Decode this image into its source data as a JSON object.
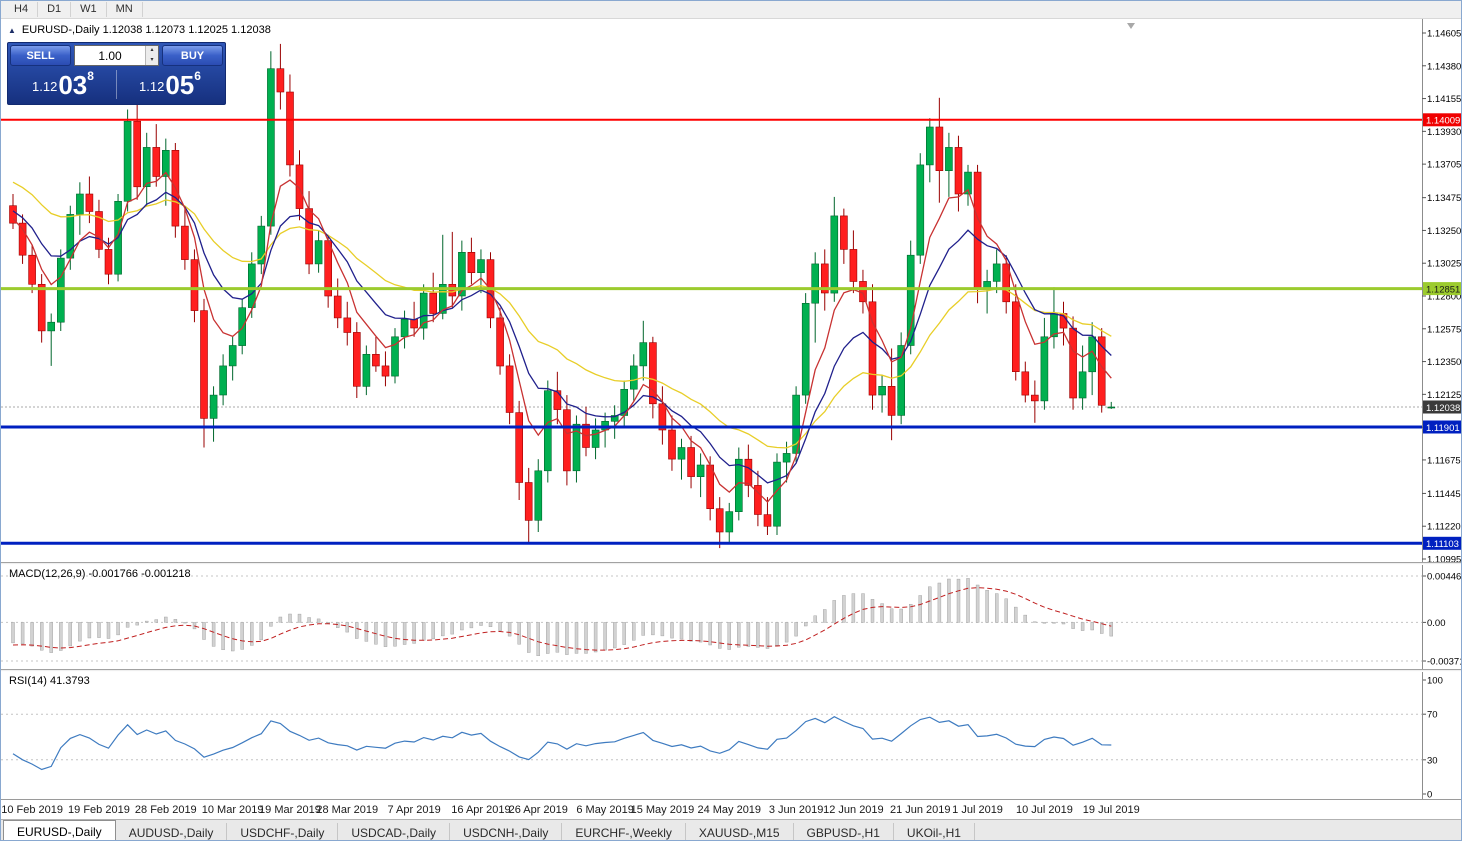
{
  "toolbar": {
    "timeframes": [
      "H4",
      "D1",
      "W1",
      "MN"
    ]
  },
  "icons": {
    "collapse": "▲",
    "spin_up": "▴",
    "spin_down": "▾"
  },
  "chart": {
    "title_line": "EURUSD-,Daily  1.12038 1.12073 1.12025 1.12038",
    "trade_panel": {
      "sell_label": "SELL",
      "buy_label": "BUY",
      "volume": "1.00",
      "sell_price": {
        "prefix": "1.12",
        "big": "03",
        "sup": "8"
      },
      "buy_price": {
        "prefix": "1.12",
        "big": "05",
        "sup": "6"
      }
    }
  },
  "macd": {
    "label": "MACD(12,26,9) -0.001766 -0.001218",
    "fast": 12,
    "slow": 26,
    "signal": 9,
    "bar_color": "#d2d2d2",
    "bar_edge": "#9a9a9a",
    "signal_color": "#C02020",
    "ticks": [
      {
        "v": 0.004465,
        "label": "0.004465"
      },
      {
        "v": 0,
        "label": "0.00"
      },
      {
        "v": -0.003715,
        "label": "-0.003715"
      }
    ]
  },
  "rsi": {
    "label": "RSI(14) 41.3793",
    "period": 14,
    "color": "#3E7BC0",
    "ticks": [
      {
        "v": 100,
        "label": "100"
      },
      {
        "v": 70,
        "label": "70",
        "dashed": true
      },
      {
        "v": 30,
        "label": "30",
        "dashed": true
      },
      {
        "v": 0,
        "label": "0"
      }
    ]
  },
  "tabbar": {
    "tabs": [
      {
        "label": "EURUSD-,Daily",
        "active": true
      },
      {
        "label": "AUDUSD-,Daily",
        "active": false
      },
      {
        "label": "USDCHF-,Daily",
        "active": false
      },
      {
        "label": "USDCAD-,Daily",
        "active": false
      },
      {
        "label": "USDCNH-,Daily",
        "active": false
      },
      {
        "label": "EURCHF-,Weekly",
        "active": false
      },
      {
        "label": "XAUUSD-,M15",
        "active": false
      },
      {
        "label": "GBPUSD-,H1",
        "active": false
      },
      {
        "label": "UKOil-,H1",
        "active": false
      }
    ]
  },
  "chart_data": {
    "type": "candlestick",
    "symbol": "EURUSD-",
    "timeframe": "Daily",
    "ohlc_display": {
      "open": "1.12038",
      "high": "1.12073",
      "low": "1.12025",
      "close": "1.12038"
    },
    "price_ticks": [
      1.14605,
      1.1438,
      1.14155,
      1.1393,
      1.13705,
      1.13475,
      1.1325,
      1.13025,
      1.128,
      1.12575,
      1.1235,
      1.12125,
      1.119,
      1.11675,
      1.11445,
      1.1122,
      1.10995
    ],
    "current_price": {
      "value": 1.12038,
      "label": "1.12038",
      "bg": "#3a3a3a",
      "fg": "#ffffff"
    },
    "hlines": [
      {
        "value": 1.14009,
        "color": "#FF0000",
        "width": 2,
        "label": "1.14009",
        "label_bg": "#F00000",
        "label_fg": "#ffffff"
      },
      {
        "value": 1.12851,
        "color": "#9CCB2E",
        "width": 3,
        "label": "1.12851",
        "label_bg": "#9CCB2E",
        "label_fg": "#1a1a1a"
      },
      {
        "value": 1.11901,
        "color": "#0020C0",
        "width": 3,
        "label": "1.11901",
        "label_bg": "#0020C0",
        "label_fg": "#ffffff"
      },
      {
        "value": 1.11103,
        "color": "#0020C0",
        "width": 3,
        "label": "1.11103",
        "label_bg": "#0020C0",
        "label_fg": "#ffffff"
      }
    ],
    "moving_averages": [
      {
        "period": 26,
        "color": "#E8CE28"
      },
      {
        "period": 12,
        "color": "#20208C"
      },
      {
        "period": 6,
        "color": "#C83232"
      }
    ],
    "ma_warmup": [
      1.1442,
      1.1448,
      1.1436,
      1.1428,
      1.1415,
      1.1422,
      1.141,
      1.1398,
      1.1405,
      1.1392,
      1.138,
      1.1388,
      1.1375,
      1.1362,
      1.137,
      1.1358,
      1.1345,
      1.1352,
      1.134,
      1.1348,
      1.1356,
      1.1344,
      1.1332,
      1.1338,
      1.1326,
      1.1332,
      1.132,
      1.1326,
      1.1334,
      1.1342
    ],
    "colors": {
      "up": "#00B050",
      "up_edge": "#00662c",
      "down": "#FF1F1F",
      "down_edge": "#990000"
    },
    "x_labels": [
      {
        "text": "10 Feb 2019",
        "i": 2
      },
      {
        "text": "19 Feb 2019",
        "i": 9
      },
      {
        "text": "28 Feb 2019",
        "i": 16
      },
      {
        "text": "10 Mar 2019",
        "i": 23
      },
      {
        "text": "19 Mar 2019",
        "i": 29
      },
      {
        "text": "28 Mar 2019",
        "i": 35
      },
      {
        "text": "7 Apr 2019",
        "i": 42
      },
      {
        "text": "16 Apr 2019",
        "i": 49
      },
      {
        "text": "26 Apr 2019",
        "i": 55
      },
      {
        "text": "6 May 2019",
        "i": 62
      },
      {
        "text": "15 May 2019",
        "i": 68
      },
      {
        "text": "24 May 2019",
        "i": 75
      },
      {
        "text": "3 Jun 2019",
        "i": 82
      },
      {
        "text": "12 Jun 2019",
        "i": 88
      },
      {
        "text": "21 Jun 2019",
        "i": 95
      },
      {
        "text": "1 Jul 2019",
        "i": 101
      },
      {
        "text": "10 Jul 2019",
        "i": 108
      },
      {
        "text": "19 Jul 2019",
        "i": 115
      }
    ],
    "candles": [
      [
        1.1342,
        1.135,
        1.1326,
        1.133
      ],
      [
        1.133,
        1.1336,
        1.1302,
        1.1308
      ],
      [
        1.1308,
        1.1315,
        1.1282,
        1.1288
      ],
      [
        1.1288,
        1.1295,
        1.1248,
        1.1256
      ],
      [
        1.1256,
        1.1268,
        1.1232,
        1.1262
      ],
      [
        1.1262,
        1.1312,
        1.1256,
        1.1306
      ],
      [
        1.1306,
        1.1342,
        1.1298,
        1.1336
      ],
      [
        1.1336,
        1.1358,
        1.1322,
        1.135
      ],
      [
        1.135,
        1.1362,
        1.133,
        1.1338
      ],
      [
        1.1338,
        1.1346,
        1.1306,
        1.1312
      ],
      [
        1.1312,
        1.132,
        1.1288,
        1.1295
      ],
      [
        1.1295,
        1.135,
        1.129,
        1.1345
      ],
      [
        1.1345,
        1.1408,
        1.1338,
        1.14
      ],
      [
        1.14,
        1.1415,
        1.1346,
        1.1355
      ],
      [
        1.1355,
        1.1392,
        1.1342,
        1.1382
      ],
      [
        1.1382,
        1.1398,
        1.1355,
        1.1362
      ],
      [
        1.1362,
        1.1388,
        1.1342,
        1.138
      ],
      [
        1.138,
        1.1385,
        1.132,
        1.1328
      ],
      [
        1.1328,
        1.134,
        1.1298,
        1.1305
      ],
      [
        1.1305,
        1.1312,
        1.1262,
        1.127
      ],
      [
        1.127,
        1.1278,
        1.1176,
        1.1196
      ],
      [
        1.1196,
        1.1218,
        1.118,
        1.1212
      ],
      [
        1.1212,
        1.124,
        1.1205,
        1.1232
      ],
      [
        1.1232,
        1.1252,
        1.1222,
        1.1246
      ],
      [
        1.1246,
        1.1278,
        1.124,
        1.1272
      ],
      [
        1.1272,
        1.131,
        1.1265,
        1.1302
      ],
      [
        1.1302,
        1.1335,
        1.1295,
        1.1328
      ],
      [
        1.1328,
        1.1448,
        1.1322,
        1.1436
      ],
      [
        1.1436,
        1.1453,
        1.1408,
        1.142
      ],
      [
        1.142,
        1.1432,
        1.1362,
        1.137
      ],
      [
        1.137,
        1.138,
        1.1332,
        1.134
      ],
      [
        1.134,
        1.1352,
        1.1295,
        1.1302
      ],
      [
        1.1302,
        1.1325,
        1.1296,
        1.1318
      ],
      [
        1.1318,
        1.1322,
        1.1272,
        1.128
      ],
      [
        1.128,
        1.1292,
        1.1258,
        1.1265
      ],
      [
        1.1265,
        1.1276,
        1.1246,
        1.1255
      ],
      [
        1.1255,
        1.1262,
        1.121,
        1.1218
      ],
      [
        1.1218,
        1.1246,
        1.1212,
        1.124
      ],
      [
        1.124,
        1.1252,
        1.1228,
        1.1232
      ],
      [
        1.1232,
        1.1242,
        1.1218,
        1.1225
      ],
      [
        1.1225,
        1.1258,
        1.122,
        1.1252
      ],
      [
        1.1252,
        1.127,
        1.1244,
        1.1264
      ],
      [
        1.1264,
        1.1276,
        1.1252,
        1.1258
      ],
      [
        1.1258,
        1.1288,
        1.125,
        1.1282
      ],
      [
        1.1282,
        1.1296,
        1.1262,
        1.1268
      ],
      [
        1.1268,
        1.1322,
        1.1264,
        1.1288
      ],
      [
        1.1288,
        1.1324,
        1.1272,
        1.128
      ],
      [
        1.128,
        1.1318,
        1.127,
        1.131
      ],
      [
        1.131,
        1.132,
        1.1288,
        1.1296
      ],
      [
        1.1296,
        1.1312,
        1.1282,
        1.1305
      ],
      [
        1.1305,
        1.131,
        1.1258,
        1.1265
      ],
      [
        1.1265,
        1.1272,
        1.1226,
        1.1232
      ],
      [
        1.1232,
        1.124,
        1.1192,
        1.12
      ],
      [
        1.12,
        1.1208,
        1.114,
        1.1152
      ],
      [
        1.1152,
        1.1162,
        1.111,
        1.1126
      ],
      [
        1.1126,
        1.1168,
        1.1118,
        1.116
      ],
      [
        1.116,
        1.1222,
        1.1152,
        1.1215
      ],
      [
        1.1215,
        1.1228,
        1.1192,
        1.1202
      ],
      [
        1.1202,
        1.1212,
        1.115,
        1.116
      ],
      [
        1.116,
        1.1198,
        1.1152,
        1.1192
      ],
      [
        1.1192,
        1.1204,
        1.117,
        1.1176
      ],
      [
        1.1176,
        1.1196,
        1.1168,
        1.1188
      ],
      [
        1.1188,
        1.12,
        1.1176,
        1.1194
      ],
      [
        1.1194,
        1.1205,
        1.1182,
        1.1198
      ],
      [
        1.1198,
        1.1222,
        1.119,
        1.1216
      ],
      [
        1.1216,
        1.124,
        1.1208,
        1.1232
      ],
      [
        1.1232,
        1.1263,
        1.1222,
        1.1248
      ],
      [
        1.1248,
        1.1252,
        1.1196,
        1.1206
      ],
      [
        1.1206,
        1.1218,
        1.1178,
        1.1188
      ],
      [
        1.1188,
        1.1198,
        1.116,
        1.1168
      ],
      [
        1.1168,
        1.1182,
        1.1154,
        1.1176
      ],
      [
        1.1176,
        1.1184,
        1.1148,
        1.1156
      ],
      [
        1.1156,
        1.1172,
        1.1142,
        1.1164
      ],
      [
        1.1164,
        1.117,
        1.1126,
        1.1134
      ],
      [
        1.1134,
        1.1142,
        1.1107,
        1.1118
      ],
      [
        1.1118,
        1.1138,
        1.111,
        1.1132
      ],
      [
        1.1132,
        1.1176,
        1.1126,
        1.1168
      ],
      [
        1.1168,
        1.1178,
        1.1142,
        1.115
      ],
      [
        1.115,
        1.116,
        1.1122,
        1.113
      ],
      [
        1.113,
        1.1142,
        1.1116,
        1.1122
      ],
      [
        1.1122,
        1.1172,
        1.1116,
        1.1166
      ],
      [
        1.1166,
        1.118,
        1.1152,
        1.1172
      ],
      [
        1.1172,
        1.1218,
        1.1166,
        1.1212
      ],
      [
        1.1212,
        1.1282,
        1.1206,
        1.1275
      ],
      [
        1.1275,
        1.131,
        1.1248,
        1.1302
      ],
      [
        1.1302,
        1.1312,
        1.127,
        1.1282
      ],
      [
        1.1282,
        1.1348,
        1.1276,
        1.1335
      ],
      [
        1.1335,
        1.134,
        1.1302,
        1.1312
      ],
      [
        1.1312,
        1.1325,
        1.1282,
        1.129
      ],
      [
        1.129,
        1.1298,
        1.1268,
        1.1276
      ],
      [
        1.1276,
        1.1288,
        1.1202,
        1.1212
      ],
      [
        1.1212,
        1.1226,
        1.12,
        1.1218
      ],
      [
        1.1218,
        1.1244,
        1.1181,
        1.1198
      ],
      [
        1.1198,
        1.1255,
        1.1192,
        1.1246
      ],
      [
        1.1246,
        1.1318,
        1.124,
        1.1308
      ],
      [
        1.1308,
        1.1378,
        1.1302,
        1.137
      ],
      [
        1.137,
        1.1402,
        1.1358,
        1.1396
      ],
      [
        1.1396,
        1.1416,
        1.1344,
        1.1366
      ],
      [
        1.1366,
        1.1392,
        1.1348,
        1.1382
      ],
      [
        1.1382,
        1.139,
        1.1338,
        1.135
      ],
      [
        1.135,
        1.137,
        1.1342,
        1.1365
      ],
      [
        1.1365,
        1.137,
        1.1275,
        1.1285
      ],
      [
        1.1285,
        1.1298,
        1.1268,
        1.129
      ],
      [
        1.129,
        1.1312,
        1.1282,
        1.1302
      ],
      [
        1.1302,
        1.1308,
        1.1268,
        1.1276
      ],
      [
        1.1276,
        1.1288,
        1.1222,
        1.1228
      ],
      [
        1.1228,
        1.1235,
        1.1207,
        1.1212
      ],
      [
        1.1212,
        1.1222,
        1.1193,
        1.1208
      ],
      [
        1.1208,
        1.1265,
        1.1202,
        1.1252
      ],
      [
        1.1252,
        1.1286,
        1.1244,
        1.1268
      ],
      [
        1.1268,
        1.1276,
        1.1246,
        1.1258
      ],
      [
        1.1258,
        1.1266,
        1.1202,
        1.121
      ],
      [
        1.121,
        1.1246,
        1.1202,
        1.1228
      ],
      [
        1.1228,
        1.1262,
        1.1212,
        1.1252
      ],
      [
        1.1252,
        1.1258,
        1.12,
        1.1205
      ],
      [
        1.12038,
        1.12073,
        1.12025,
        1.12038
      ]
    ]
  }
}
